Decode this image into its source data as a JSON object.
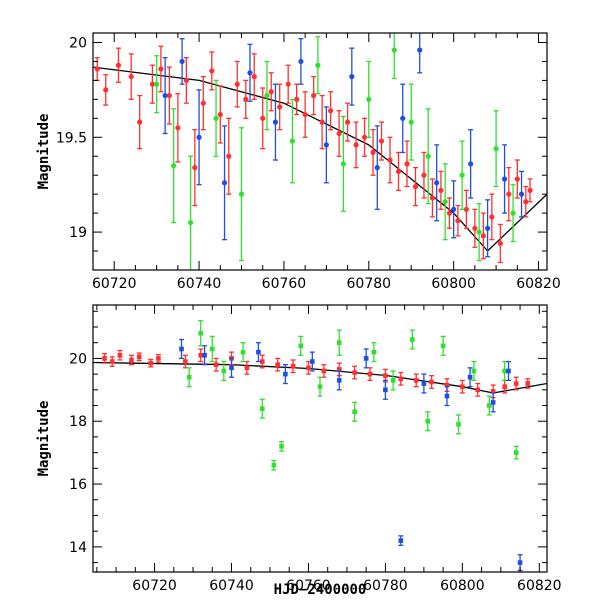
{
  "chart_data": [
    {
      "type": "scatter",
      "title": "",
      "xlabel": "",
      "ylabel": "Magnitude",
      "xlim": [
        60715,
        60822
      ],
      "ylim": [
        20.05,
        18.8
      ],
      "y_inverted": true,
      "xticks": [
        60720,
        60740,
        60760,
        60780,
        60800,
        60820
      ],
      "yticks": [
        19,
        19.5,
        20
      ],
      "grid": false,
      "legend": "none",
      "colors": {
        "red": "#ff3030",
        "green": "#30e030",
        "blue": "#1f4fe0",
        "model": "#000000"
      },
      "model_line": {
        "x": [
          60715,
          60740,
          60760,
          60780,
          60800,
          60808,
          60822
        ],
        "y": [
          19.87,
          19.8,
          19.68,
          19.46,
          19.1,
          18.9,
          19.2
        ]
      },
      "series": [
        {
          "color": "red",
          "points": [
            [
              60716,
              19.86,
              0.06
            ],
            [
              60718,
              19.75,
              0.08
            ],
            [
              60721,
              19.88,
              0.09
            ],
            [
              60724,
              19.82,
              0.12
            ],
            [
              60726,
              19.58,
              0.14
            ],
            [
              60729,
              19.78,
              0.1
            ],
            [
              60731,
              19.86,
              0.12
            ],
            [
              60733,
              19.72,
              0.15
            ],
            [
              60735,
              19.55,
              0.18
            ],
            [
              60737,
              19.8,
              0.12
            ],
            [
              60739,
              19.34,
              0.2
            ],
            [
              60741,
              19.68,
              0.14
            ],
            [
              60743,
              19.85,
              0.1
            ],
            [
              60745,
              19.62,
              0.15
            ],
            [
              60747,
              19.4,
              0.2
            ],
            [
              60749,
              19.78,
              0.12
            ],
            [
              60751,
              19.7,
              0.1
            ],
            [
              60753,
              19.82,
              0.12
            ],
            [
              60755,
              19.6,
              0.16
            ],
            [
              60757,
              19.74,
              0.1
            ],
            [
              60759,
              19.66,
              0.12
            ],
            [
              60761,
              19.78,
              0.1
            ],
            [
              60763,
              19.7,
              0.08
            ],
            [
              60765,
              19.62,
              0.12
            ],
            [
              60767,
              19.72,
              0.1
            ],
            [
              60769,
              19.58,
              0.14
            ],
            [
              60771,
              19.64,
              0.1
            ],
            [
              60773,
              19.52,
              0.12
            ],
            [
              60775,
              19.58,
              0.1
            ],
            [
              60777,
              19.46,
              0.12
            ],
            [
              60779,
              19.5,
              0.1
            ],
            [
              60781,
              19.42,
              0.12
            ],
            [
              60783,
              19.48,
              0.1
            ],
            [
              60785,
              19.38,
              0.12
            ],
            [
              60787,
              19.32,
              0.1
            ],
            [
              60789,
              19.36,
              0.12
            ],
            [
              60791,
              19.24,
              0.1
            ],
            [
              60793,
              19.3,
              0.12
            ],
            [
              60795,
              19.18,
              0.1
            ],
            [
              60797,
              19.22,
              0.1
            ],
            [
              60799,
              19.1,
              0.08
            ],
            [
              60801,
              19.06,
              0.08
            ],
            [
              60803,
              19.12,
              0.1
            ],
            [
              60805,
              19.02,
              0.1
            ],
            [
              60807,
              18.98,
              0.12
            ],
            [
              60809,
              19.08,
              0.12
            ],
            [
              60811,
              18.94,
              0.1
            ],
            [
              60813,
              19.2,
              0.14
            ],
            [
              60815,
              19.28,
              0.1
            ],
            [
              60817,
              19.16,
              0.08
            ],
            [
              60818,
              19.22,
              0.06
            ]
          ]
        },
        {
          "color": "green",
          "points": [
            [
              60730,
              19.78,
              0.15
            ],
            [
              60734,
              19.35,
              0.3
            ],
            [
              60738,
              19.05,
              0.35
            ],
            [
              60744,
              19.6,
              0.2
            ],
            [
              60750,
              19.2,
              0.35
            ],
            [
              60756,
              19.72,
              0.18
            ],
            [
              60762,
              19.48,
              0.22
            ],
            [
              60768,
              19.88,
              0.15
            ],
            [
              60774,
              19.36,
              0.25
            ],
            [
              60780,
              19.7,
              0.2
            ],
            [
              60786,
              19.96,
              0.15
            ],
            [
              60790,
              19.58,
              0.2
            ],
            [
              60794,
              19.4,
              0.25
            ],
            [
              60798,
              19.16,
              0.2
            ],
            [
              60802,
              19.3,
              0.18
            ],
            [
              60806,
              19.0,
              0.15
            ],
            [
              60810,
              19.44,
              0.2
            ],
            [
              60814,
              19.1,
              0.15
            ]
          ]
        },
        {
          "color": "blue",
          "points": [
            [
              60732,
              19.72,
              0.2
            ],
            [
              60736,
              19.9,
              0.12
            ],
            [
              60740,
              19.5,
              0.25
            ],
            [
              60746,
              19.26,
              0.3
            ],
            [
              60752,
              19.84,
              0.15
            ],
            [
              60758,
              19.58,
              0.2
            ],
            [
              60764,
              19.9,
              0.12
            ],
            [
              60770,
              19.46,
              0.2
            ],
            [
              60776,
              19.82,
              0.15
            ],
            [
              60782,
              19.34,
              0.22
            ],
            [
              60788,
              19.6,
              0.18
            ],
            [
              60792,
              19.96,
              0.12
            ],
            [
              60796,
              19.26,
              0.2
            ],
            [
              60800,
              19.12,
              0.15
            ],
            [
              60804,
              19.36,
              0.18
            ],
            [
              60808,
              19.02,
              0.15
            ],
            [
              60812,
              19.28,
              0.18
            ],
            [
              60816,
              19.2,
              0.12
            ]
          ]
        }
      ]
    },
    {
      "type": "scatter",
      "title": "",
      "xlabel": "HJD−2400000",
      "ylabel": "Magnitude",
      "xlim": [
        60704,
        60822
      ],
      "ylim": [
        21.7,
        13.2
      ],
      "y_inverted": true,
      "xticks": [
        60720,
        60740,
        60760,
        60780,
        60800,
        60820
      ],
      "yticks": [
        14,
        16,
        18,
        20
      ],
      "grid": false,
      "legend": "none",
      "colors": {
        "red": "#ff3030",
        "green": "#30e030",
        "blue": "#1f4fe0",
        "model": "#000000"
      },
      "model_line": {
        "x": [
          60704,
          60740,
          60760,
          60780,
          60800,
          60808,
          60822
        ],
        "y": [
          19.87,
          19.8,
          19.68,
          19.46,
          19.1,
          18.9,
          19.2
        ]
      },
      "series": [
        {
          "color": "red",
          "points": [
            [
              60707,
              20.0,
              0.15
            ],
            [
              60709,
              19.9,
              0.15
            ],
            [
              60711,
              20.1,
              0.15
            ],
            [
              60714,
              19.95,
              0.15
            ],
            [
              60716,
              20.05,
              0.12
            ],
            [
              60719,
              19.85,
              0.12
            ],
            [
              60721,
              20.0,
              0.12
            ],
            [
              60728,
              19.9,
              0.2
            ],
            [
              60732,
              20.1,
              0.2
            ],
            [
              60736,
              19.8,
              0.2
            ],
            [
              60740,
              20.0,
              0.2
            ],
            [
              60744,
              19.7,
              0.2
            ],
            [
              60748,
              19.9,
              0.2
            ],
            [
              60752,
              19.8,
              0.2
            ],
            [
              60756,
              19.75,
              0.2
            ],
            [
              60760,
              19.7,
              0.2
            ],
            [
              60764,
              19.6,
              0.2
            ],
            [
              60768,
              19.65,
              0.2
            ],
            [
              60772,
              19.55,
              0.2
            ],
            [
              60776,
              19.5,
              0.2
            ],
            [
              60780,
              19.45,
              0.2
            ],
            [
              60784,
              19.35,
              0.2
            ],
            [
              60788,
              19.3,
              0.2
            ],
            [
              60792,
              19.25,
              0.2
            ],
            [
              60796,
              19.15,
              0.2
            ],
            [
              60800,
              19.1,
              0.2
            ],
            [
              60804,
              19.0,
              0.2
            ],
            [
              60808,
              18.95,
              0.2
            ],
            [
              60811,
              19.1,
              0.2
            ],
            [
              60814,
              19.2,
              0.2
            ],
            [
              60817,
              19.2,
              0.15
            ]
          ]
        },
        {
          "color": "green",
          "points": [
            [
              60729,
              19.4,
              0.3
            ],
            [
              60732,
              20.8,
              0.4
            ],
            [
              60735,
              20.3,
              0.4
            ],
            [
              60738,
              19.6,
              0.3
            ],
            [
              60743,
              20.2,
              0.3
            ],
            [
              60748,
              18.4,
              0.3
            ],
            [
              60751,
              16.6,
              0.15
            ],
            [
              60753,
              17.2,
              0.15
            ],
            [
              60758,
              20.4,
              0.3
            ],
            [
              60763,
              19.1,
              0.3
            ],
            [
              60768,
              20.5,
              0.4
            ],
            [
              60772,
              18.3,
              0.3
            ],
            [
              60777,
              20.2,
              0.3
            ],
            [
              60782,
              19.3,
              0.3
            ],
            [
              60787,
              20.6,
              0.3
            ],
            [
              60791,
              18.0,
              0.3
            ],
            [
              60795,
              20.4,
              0.3
            ],
            [
              60799,
              17.9,
              0.3
            ],
            [
              60803,
              19.6,
              0.3
            ],
            [
              60807,
              18.5,
              0.3
            ],
            [
              60811,
              19.6,
              0.3
            ],
            [
              60814,
              17.0,
              0.2
            ]
          ]
        },
        {
          "color": "blue",
          "points": [
            [
              60727,
              20.3,
              0.3
            ],
            [
              60733,
              20.1,
              0.3
            ],
            [
              60740,
              19.7,
              0.3
            ],
            [
              60747,
              20.2,
              0.3
            ],
            [
              60754,
              19.5,
              0.3
            ],
            [
              60761,
              19.9,
              0.3
            ],
            [
              60768,
              19.3,
              0.3
            ],
            [
              60775,
              20.0,
              0.3
            ],
            [
              60780,
              19.0,
              0.3
            ],
            [
              60784,
              14.2,
              0.15
            ],
            [
              60790,
              19.2,
              0.3
            ],
            [
              60796,
              18.8,
              0.3
            ],
            [
              60802,
              19.4,
              0.3
            ],
            [
              60808,
              18.6,
              0.3
            ],
            [
              60812,
              19.6,
              0.3
            ],
            [
              60815,
              13.5,
              0.25
            ]
          ]
        }
      ]
    }
  ]
}
